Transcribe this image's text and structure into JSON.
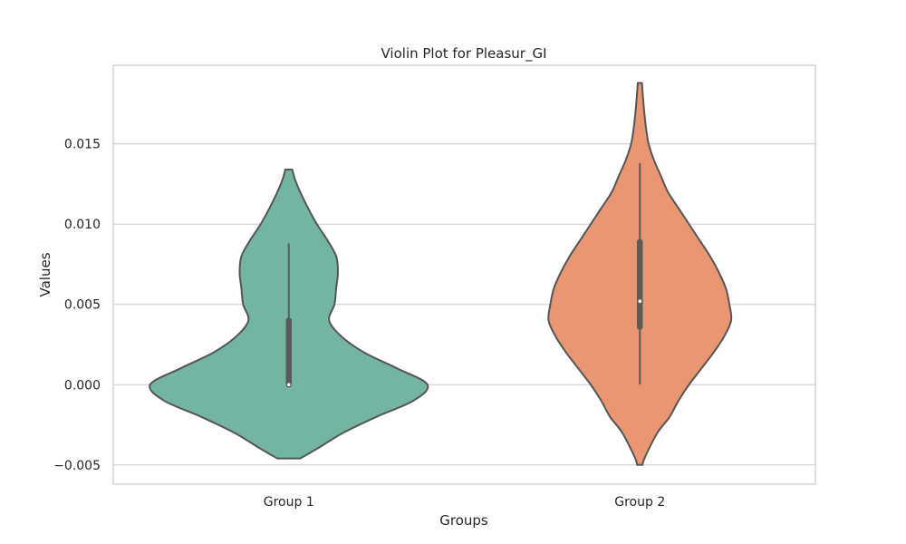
{
  "chart_data": {
    "type": "violin",
    "title": "Violin Plot for Pleasur_GI",
    "xlabel": "Groups",
    "ylabel": "Values",
    "ylim": [
      -0.0062,
      0.0199
    ],
    "yticks": [
      -0.005,
      0.0,
      0.005,
      0.01,
      0.015
    ],
    "ytick_labels": [
      "−0.005",
      "0.000",
      "0.005",
      "0.010",
      "0.015"
    ],
    "grid": "horizontal",
    "categories": [
      "Group 1",
      "Group 2"
    ],
    "series": [
      {
        "category": "Group 1",
        "color": "#73b5a2",
        "density": [
          {
            "y": -0.0046,
            "half_width": 0.065
          },
          {
            "y": -0.004,
            "half_width": 0.16
          },
          {
            "y": -0.003,
            "half_width": 0.31
          },
          {
            "y": -0.002,
            "half_width": 0.5
          },
          {
            "y": -0.001,
            "half_width": 0.71
          },
          {
            "y": 0.0,
            "half_width": 0.79
          },
          {
            "y": 0.001,
            "half_width": 0.62
          },
          {
            "y": 0.002,
            "half_width": 0.43
          },
          {
            "y": 0.003,
            "half_width": 0.3
          },
          {
            "y": 0.004,
            "half_width": 0.23
          },
          {
            "y": 0.005,
            "half_width": 0.26
          },
          {
            "y": 0.006,
            "half_width": 0.27
          },
          {
            "y": 0.007,
            "half_width": 0.28
          },
          {
            "y": 0.008,
            "half_width": 0.27
          },
          {
            "y": 0.009,
            "half_width": 0.22
          },
          {
            "y": 0.01,
            "half_width": 0.16
          },
          {
            "y": 0.011,
            "half_width": 0.11
          },
          {
            "y": 0.012,
            "half_width": 0.065
          },
          {
            "y": 0.0128,
            "half_width": 0.035
          },
          {
            "y": 0.0134,
            "half_width": 0.02
          }
        ],
        "whisker": [
          0.0,
          0.0088
        ],
        "box": [
          0.0,
          0.004
        ],
        "median": 0.0
      },
      {
        "category": "Group 2",
        "color": "#e99673",
        "density": [
          {
            "y": -0.005,
            "half_width": 0.015
          },
          {
            "y": -0.0045,
            "half_width": 0.03
          },
          {
            "y": -0.003,
            "half_width": 0.1
          },
          {
            "y": -0.002,
            "half_width": 0.17
          },
          {
            "y": -0.001,
            "half_width": 0.22
          },
          {
            "y": 0.0,
            "half_width": 0.28
          },
          {
            "y": 0.001,
            "half_width": 0.35
          },
          {
            "y": 0.002,
            "half_width": 0.42
          },
          {
            "y": 0.003,
            "half_width": 0.48
          },
          {
            "y": 0.004,
            "half_width": 0.52
          },
          {
            "y": 0.005,
            "half_width": 0.51
          },
          {
            "y": 0.006,
            "half_width": 0.49
          },
          {
            "y": 0.007,
            "half_width": 0.45
          },
          {
            "y": 0.008,
            "half_width": 0.4
          },
          {
            "y": 0.009,
            "half_width": 0.34
          },
          {
            "y": 0.01,
            "half_width": 0.28
          },
          {
            "y": 0.011,
            "half_width": 0.22
          },
          {
            "y": 0.012,
            "half_width": 0.16
          },
          {
            "y": 0.013,
            "half_width": 0.12
          },
          {
            "y": 0.014,
            "half_width": 0.08
          },
          {
            "y": 0.015,
            "half_width": 0.05
          },
          {
            "y": 0.016,
            "half_width": 0.035
          },
          {
            "y": 0.017,
            "half_width": 0.025
          },
          {
            "y": 0.018,
            "half_width": 0.017
          },
          {
            "y": 0.0188,
            "half_width": 0.012
          }
        ],
        "whisker": [
          0.0,
          0.0138
        ],
        "box": [
          0.0036,
          0.0089
        ],
        "median": 0.0052
      }
    ],
    "colors": {
      "outline": "#555555",
      "grid": "#cccccc",
      "spine": "#cccccc",
      "box": "#5a5a5a",
      "median": "#ffffff"
    }
  }
}
